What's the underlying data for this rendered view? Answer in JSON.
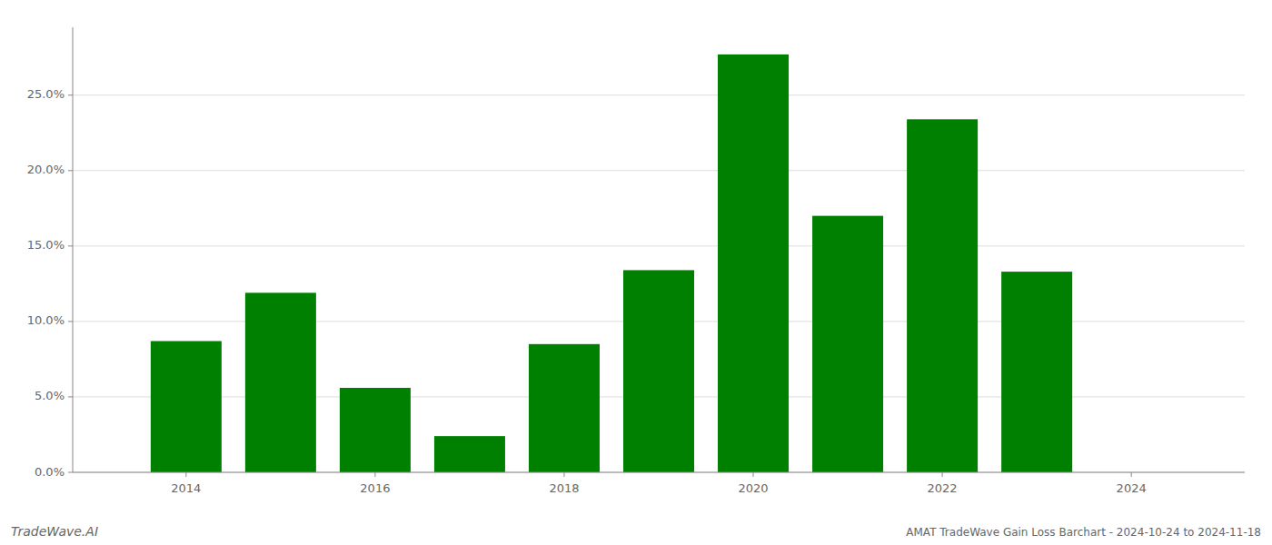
{
  "chart_data": {
    "type": "bar",
    "title": "AMAT TradeWave Gain Loss Barchart - 2024-10-24 to 2024-11-18",
    "annotations": [
      "TradeWave.AI"
    ],
    "x": [
      2014,
      2015,
      2016,
      2017,
      2018,
      2019,
      2020,
      2021,
      2022,
      2023
    ],
    "values": [
      0.087,
      0.119,
      0.056,
      0.024,
      0.085,
      0.134,
      0.277,
      0.17,
      0.234,
      0.133
    ],
    "color": "#008000",
    "xlim": [
      2012.8,
      2025.2
    ],
    "xticks": [
      2014,
      2016,
      2018,
      2020,
      2022,
      2024
    ],
    "ylim": [
      0.0,
      0.295
    ],
    "yticks": [
      {
        "value": 0.0,
        "label": "0.0%"
      },
      {
        "value": 0.05,
        "label": "5.0%"
      },
      {
        "value": 0.1,
        "label": "10.0%"
      },
      {
        "value": 0.15,
        "label": "15.0%"
      },
      {
        "value": 0.2,
        "label": "20.0%"
      },
      {
        "value": 0.25,
        "label": "25.0%"
      }
    ],
    "grid": true
  }
}
